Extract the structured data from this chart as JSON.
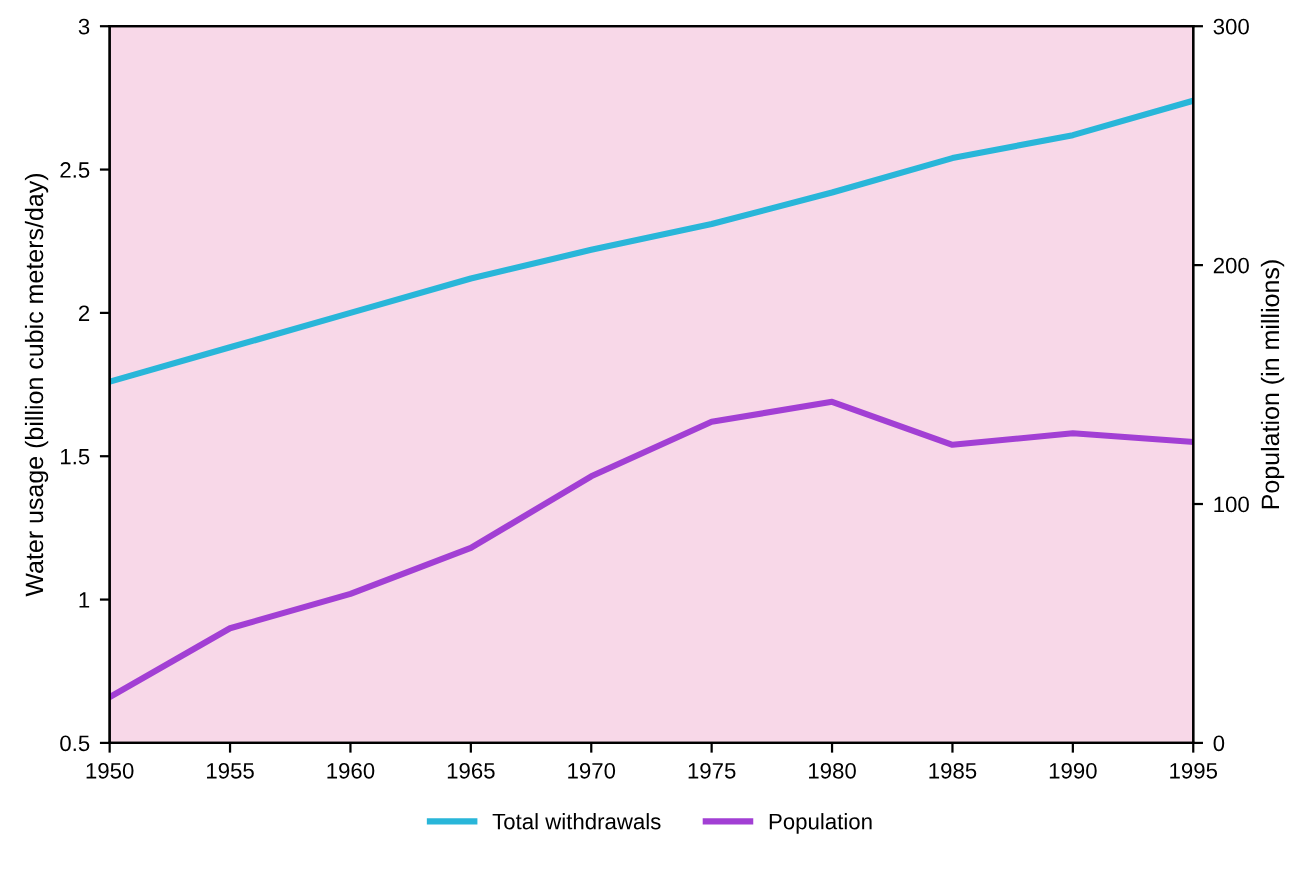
{
  "chart_data": {
    "type": "line",
    "x": [
      1950,
      1955,
      1960,
      1965,
      1970,
      1975,
      1980,
      1985,
      1990,
      1995
    ],
    "series": [
      {
        "name": "Total withdrawals",
        "color": "#29b6d9",
        "values": [
          1.76,
          1.88,
          2.0,
          2.12,
          2.22,
          2.31,
          2.42,
          2.54,
          2.62,
          2.74
        ]
      },
      {
        "name": "Population",
        "color": "#a23fd4",
        "values": [
          0.66,
          0.9,
          1.02,
          1.18,
          1.43,
          1.62,
          1.69,
          1.54,
          1.58,
          1.55
        ]
      }
    ],
    "xlim": [
      1950,
      1995
    ],
    "xticks": [
      1950,
      1955,
      1960,
      1965,
      1970,
      1975,
      1980,
      1985,
      1990,
      1995
    ],
    "ylim": [
      0.5,
      3
    ],
    "yticks": [
      0.5,
      1,
      1.5,
      2,
      2.5,
      3
    ],
    "y2lim": [
      0,
      300
    ],
    "y2ticks": [
      0,
      100,
      200,
      300
    ],
    "ylabel": "Water usage (billion cubic meters/day)",
    "y2label": "Population (in millions)",
    "legend": "bottom",
    "marker": "none",
    "line_style": "solid"
  }
}
